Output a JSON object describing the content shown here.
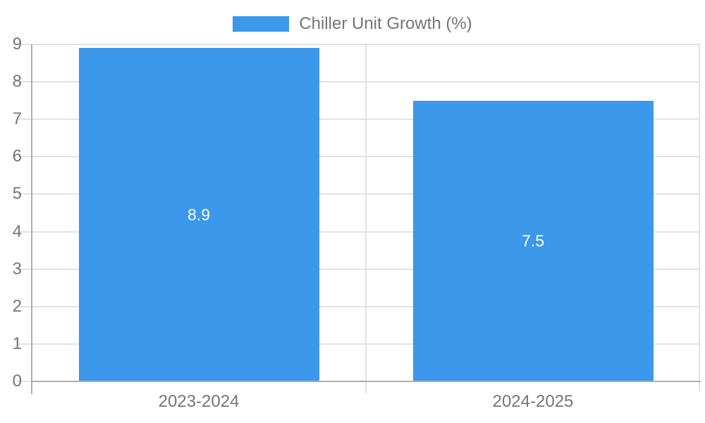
{
  "chart_data": {
    "type": "bar",
    "legend": "Chiller Unit Growth (%)",
    "legend_position": "top",
    "categories": [
      "2023-2024",
      "2024-2025"
    ],
    "values": [
      8.9,
      7.5
    ],
    "bar_labels": [
      "8.9",
      "7.5"
    ],
    "y_ticks": [
      0,
      1,
      2,
      3,
      4,
      5,
      6,
      7,
      8,
      9
    ],
    "ylim": [
      0,
      9
    ],
    "grid": true,
    "colors": {
      "bar": "#3B98EB",
      "grid": "#e2e2e2",
      "axis": "#aeaeae",
      "text": "#757575",
      "bar_label": "#ffffff",
      "background": "#ffffff"
    }
  }
}
